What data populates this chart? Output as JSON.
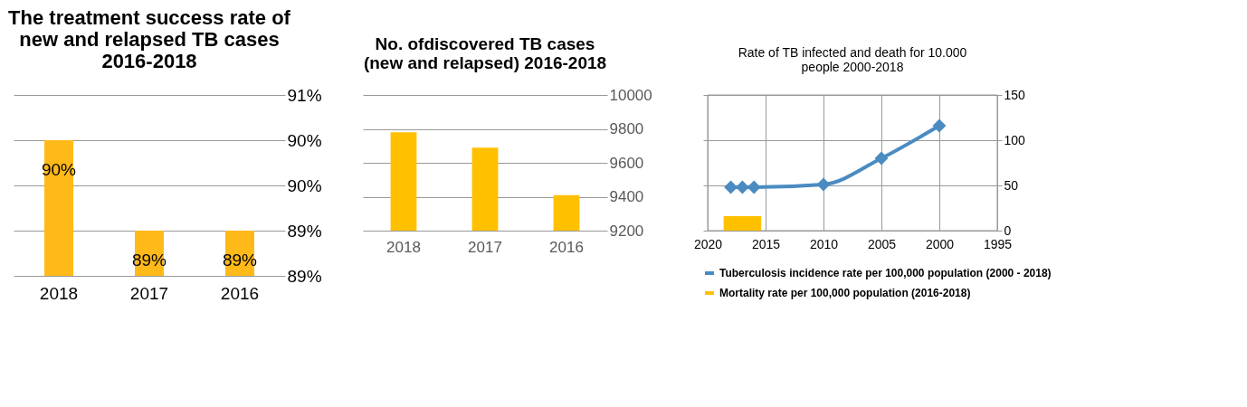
{
  "chart_data": [
    {
      "type": "bar",
      "title": "The treatment success rate of   new and relapsed TB  cases 2016-2018",
      "categories": [
        "2018",
        "2017",
        "2016"
      ],
      "values": [
        90,
        89,
        89
      ],
      "value_labels": [
        "90%",
        "89%",
        "89%"
      ],
      "color": "#ffb919",
      "ylim": [
        88.5,
        90.5
      ],
      "yticks": [
        {
          "value": 88.5,
          "label": "89%"
        },
        {
          "value": 89,
          "label": "89%"
        },
        {
          "value": 89.5,
          "label": "90%"
        },
        {
          "value": 90,
          "label": "90%"
        },
        {
          "value": 90.5,
          "label": "91%"
        }
      ],
      "grid": "y"
    },
    {
      "type": "bar",
      "title": "No. ofdiscovered TB  cases (new and relapsed) 2016-2018",
      "categories": [
        "2018",
        "2017",
        "2016"
      ],
      "values": [
        9780,
        9690,
        9410
      ],
      "color": "#ffc000",
      "ylim": [
        9200,
        10000
      ],
      "yticks": [
        9200,
        9400,
        9600,
        9800,
        10000
      ],
      "grid": "y"
    },
    {
      "type": "line",
      "title": "Rate of  TB infected  and death for 10.000 people  2000-2018",
      "series": [
        {
          "name": "Tuberculosis incidence rate per 100,000 population (2000 - 2018)",
          "type": "line",
          "color": "#4a8bc2",
          "x": [
            2018,
            2017,
            2016,
            2010,
            2005,
            2000
          ],
          "values": [
            48,
            48,
            48,
            51,
            80,
            116
          ],
          "marker": "diamond"
        },
        {
          "name": "Mortality rate per 100,000 population (2016-2018)",
          "type": "bar",
          "color": "#ffc000",
          "x": [
            2018,
            2017,
            2016
          ],
          "values": [
            16,
            16,
            16
          ]
        }
      ],
      "xlim": [
        2020,
        1995
      ],
      "xticks": [
        2020,
        2015,
        2010,
        2005,
        2000,
        1995
      ],
      "ylim": [
        0,
        150
      ],
      "yticks": [
        0,
        50,
        100,
        150
      ],
      "grid": true,
      "legend": "bottom"
    }
  ]
}
